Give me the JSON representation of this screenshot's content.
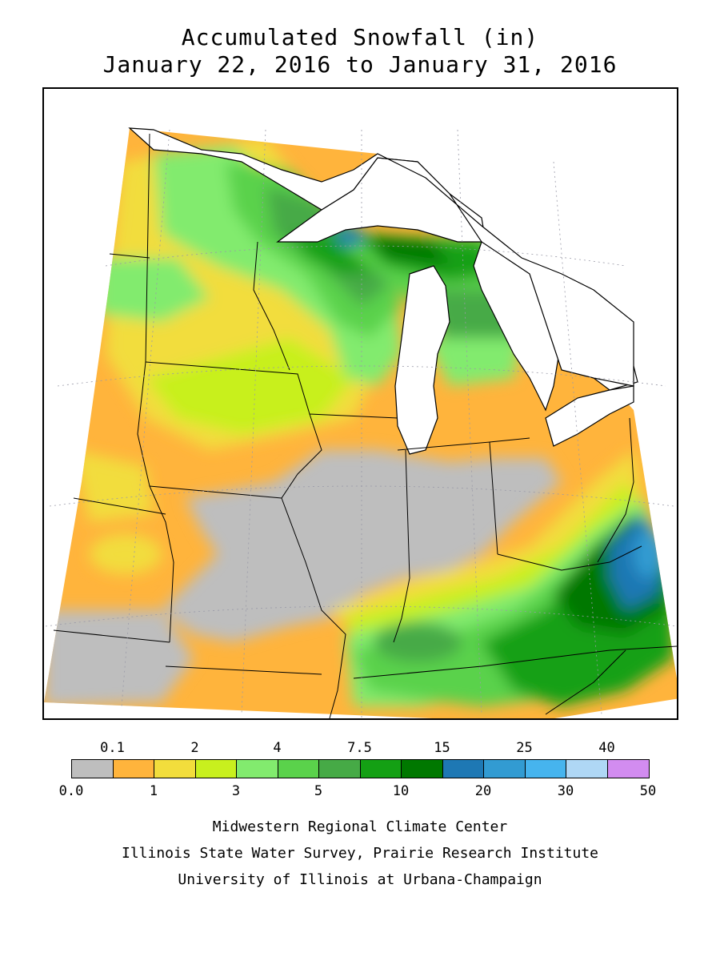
{
  "title": {
    "line1": "Accumulated Snowfall (in)",
    "line2": "January 22, 2016 to January 31, 2016"
  },
  "legend": {
    "top_labels": [
      "0.1",
      "2",
      "4",
      "7.5",
      "15",
      "25",
      "40"
    ],
    "bottom_labels": [
      "0.0",
      "1",
      "3",
      "5",
      "10",
      "20",
      "30",
      "50"
    ],
    "colors": [
      "#bebebe",
      "#ffb43c",
      "#f2dd3c",
      "#c8f01e",
      "#82eb6e",
      "#5ad24b",
      "#46aa46",
      "#14a014",
      "#007800",
      "#1e78b4",
      "#329bd2",
      "#46b4ee",
      "#afd7f5",
      "#d28cf0"
    ]
  },
  "credits": [
    "Midwestern Regional Climate Center",
    "Illinois State Water Survey, Prairie Research Institute",
    "University of Illinois at Urbana-Champaign"
  ]
}
